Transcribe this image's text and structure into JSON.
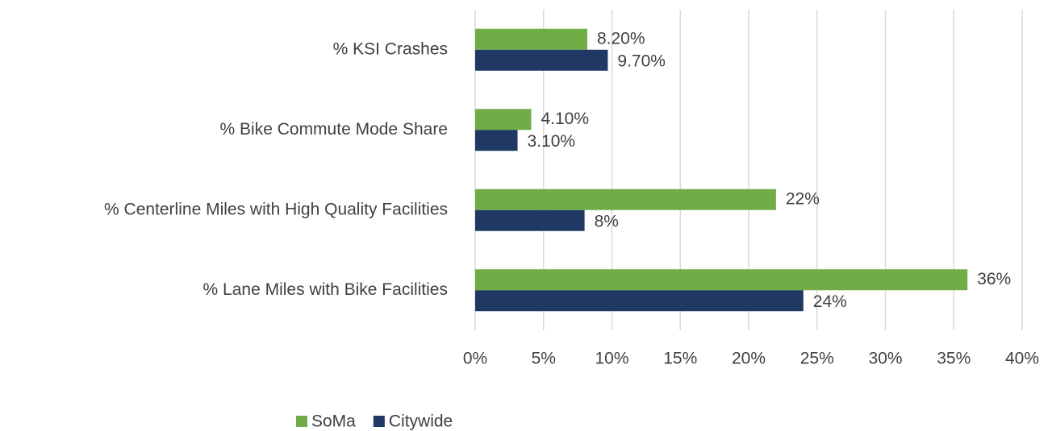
{
  "chart_data": {
    "type": "bar",
    "orientation": "horizontal",
    "categories": [
      "% KSI Crashes",
      "% Bike Commute Mode Share",
      "% Centerline Miles with High Quality Facilities",
      "% Lane Miles with Bike Facilities"
    ],
    "series": [
      {
        "name": "SoMa",
        "color": "#70ad47",
        "values": [
          8.2,
          4.1,
          22,
          36
        ],
        "value_labels": [
          "8.20%",
          "4.10%",
          "22%",
          "36%"
        ]
      },
      {
        "name": "Citywide",
        "color": "#203864",
        "values": [
          9.7,
          3.1,
          8,
          24
        ],
        "value_labels": [
          "9.70%",
          "3.10%",
          "8%",
          "24%"
        ]
      }
    ],
    "xlim": [
      0,
      40
    ],
    "xticks": [
      {
        "value": 0,
        "label": "0%"
      },
      {
        "value": 5,
        "label": "5%"
      },
      {
        "value": 10,
        "label": "10%"
      },
      {
        "value": 15,
        "label": "15%"
      },
      {
        "value": 20,
        "label": "20%"
      },
      {
        "value": 25,
        "label": "25%"
      },
      {
        "value": 30,
        "label": "30%"
      },
      {
        "value": 35,
        "label": "35%"
      },
      {
        "value": 40,
        "label": "40%"
      }
    ],
    "grid": true,
    "legend": "bottom"
  }
}
